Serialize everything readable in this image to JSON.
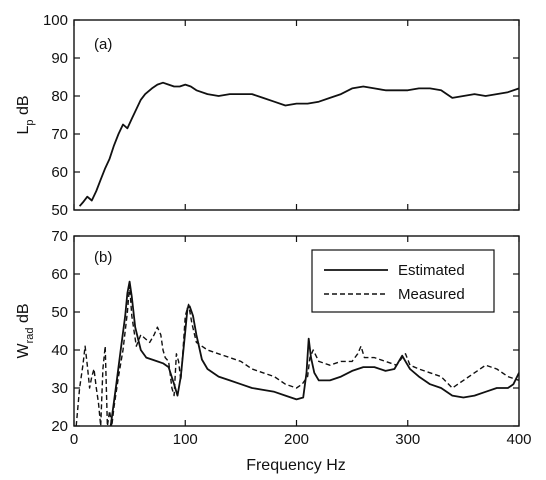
{
  "chart_data": [
    {
      "type": "line",
      "panel_label": "(a)",
      "ylabel_main": "L",
      "ylabel_sub": "p",
      "ylabel_unit": " dB",
      "xlim": [
        0,
        400
      ],
      "ylim": [
        50,
        100
      ],
      "yticks": [
        50,
        60,
        70,
        80,
        90,
        100
      ],
      "xticks": [
        0,
        100,
        200,
        300,
        400
      ],
      "grid": false,
      "series": [
        {
          "style": "solid",
          "x": [
            5,
            8,
            12,
            16,
            20,
            24,
            28,
            32,
            36,
            40,
            44,
            48,
            52,
            56,
            60,
            64,
            70,
            75,
            80,
            85,
            90,
            95,
            100,
            105,
            110,
            120,
            130,
            140,
            150,
            160,
            170,
            180,
            190,
            200,
            210,
            220,
            230,
            240,
            250,
            260,
            270,
            280,
            290,
            300,
            310,
            320,
            330,
            340,
            350,
            360,
            370,
            380,
            390,
            400
          ],
          "y": [
            51,
            52,
            53.5,
            52.5,
            55,
            58,
            61,
            63.5,
            67,
            70,
            72.5,
            71.5,
            74,
            76.5,
            79,
            80.5,
            82,
            83,
            83.5,
            83,
            82.5,
            82.5,
            83,
            82.5,
            81.5,
            80.5,
            80,
            80.5,
            80.5,
            80.5,
            79.5,
            78.5,
            77.5,
            78,
            78,
            78.5,
            79.5,
            80.5,
            82,
            82.5,
            82,
            81.5,
            81.5,
            81.5,
            82,
            82,
            81.5,
            79.5,
            80,
            80.5,
            80,
            80.5,
            81,
            82
          ]
        }
      ]
    },
    {
      "type": "line",
      "panel_label": "(b)",
      "ylabel_main": "W",
      "ylabel_sub": "rad",
      "ylabel_unit": " dB",
      "xlabel": "Frequency  Hz",
      "xlim": [
        0,
        400
      ],
      "ylim": [
        20,
        70
      ],
      "yticks": [
        20,
        30,
        40,
        50,
        60,
        70
      ],
      "xticks": [
        0,
        100,
        200,
        300,
        400
      ],
      "grid": false,
      "legend_position": "top-right",
      "series": [
        {
          "name": "Estimated",
          "style": "solid",
          "x": [
            33,
            38,
            42,
            46,
            48,
            50,
            52,
            55,
            60,
            65,
            70,
            75,
            80,
            85,
            90,
            93,
            96,
            100,
            102,
            104,
            107,
            110,
            115,
            120,
            130,
            140,
            150,
            160,
            170,
            180,
            190,
            200,
            206,
            209,
            211,
            213,
            216,
            220,
            230,
            240,
            250,
            260,
            270,
            280,
            288,
            292,
            295,
            298,
            302,
            310,
            320,
            330,
            340,
            350,
            360,
            370,
            380,
            390,
            395,
            400
          ],
          "y": [
            20,
            31,
            40,
            49,
            55,
            58,
            54,
            46,
            40,
            38,
            37.5,
            37,
            36.5,
            35.5,
            31,
            28,
            33,
            45,
            51,
            51.5,
            49,
            44,
            37.5,
            35,
            33,
            32,
            31,
            30,
            29.5,
            29,
            28,
            27,
            27.5,
            34,
            43,
            38,
            34,
            32,
            32,
            33,
            34.5,
            35.5,
            35.5,
            34.5,
            35,
            37,
            38.5,
            37,
            35,
            33,
            31,
            30,
            28,
            27.5,
            28,
            29,
            30,
            30,
            31,
            34
          ]
        },
        {
          "name": "Measured",
          "style": "dashed",
          "x": [
            2,
            5,
            8,
            10,
            12,
            14,
            16,
            18,
            20,
            22,
            24,
            26,
            28,
            30,
            32,
            34,
            36,
            40,
            44,
            48,
            50,
            52,
            56,
            60,
            64,
            68,
            72,
            75,
            78,
            80,
            82,
            85,
            88,
            90,
            92,
            94,
            96,
            98,
            100,
            103,
            106,
            110,
            115,
            120,
            130,
            140,
            150,
            160,
            170,
            180,
            190,
            200,
            205,
            210,
            212,
            215,
            220,
            230,
            240,
            250,
            255,
            258,
            261,
            265,
            270,
            280,
            290,
            295,
            298,
            302,
            310,
            320,
            330,
            340,
            350,
            360,
            370,
            380,
            390,
            400
          ],
          "y": [
            20,
            30,
            36,
            41,
            36,
            30,
            33,
            35,
            30,
            26,
            20,
            35,
            41,
            20,
            24,
            20,
            25,
            33,
            40,
            50,
            57,
            49,
            41,
            44,
            43,
            42,
            44,
            46,
            44,
            40,
            38,
            37,
            30,
            28,
            39,
            37,
            32,
            40,
            49,
            52,
            47,
            42,
            41,
            40,
            39,
            38,
            37,
            35,
            34,
            33,
            31,
            30,
            31,
            33,
            38,
            40,
            37,
            36,
            37,
            37,
            39,
            41,
            38,
            38,
            38,
            37,
            36,
            38,
            39,
            36,
            35,
            34,
            33,
            30,
            32,
            34,
            36,
            35,
            33,
            32
          ]
        }
      ]
    }
  ]
}
